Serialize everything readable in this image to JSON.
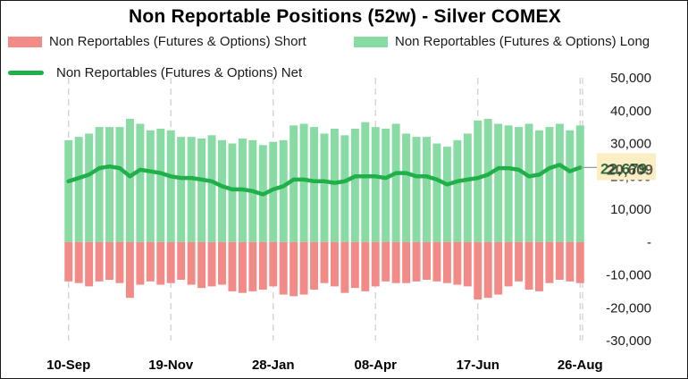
{
  "chart_data": {
    "type": "bar",
    "title": "Non Reportable  Positions (52w) - Silver COMEX",
    "legend": {
      "placement": "top",
      "short_label": "Non Reportables (Futures & Options)  Short",
      "long_label": "Non Reportables (Futures & Options)  Long",
      "net_label": "Non Reportables (Futures & Options)  Net"
    },
    "x_tick_labels": [
      "10-Sep",
      "19-Nov",
      "28-Jan",
      "08-Apr",
      "17-Jun",
      "26-Aug"
    ],
    "x_tick_indices": [
      0,
      10,
      20,
      30,
      40,
      50
    ],
    "y_ticks": [
      50000,
      40000,
      30000,
      20000,
      10000,
      0,
      -10000,
      -20000,
      -30000
    ],
    "y_tick_labels": [
      "50,000",
      "40,000",
      "30,000",
      "20,000",
      "10,000",
      "-",
      "-10,000",
      "-20,000",
      "-30,000"
    ],
    "ylim": [
      -30000,
      50000
    ],
    "grid": "vertical dashed",
    "series": [
      {
        "name": "Non Reportables (Futures & Options)  Long",
        "type": "bar",
        "color": "#88dba3",
        "values": [
          31000,
          32000,
          33000,
          35000,
          35000,
          35000,
          37500,
          36000,
          34000,
          34500,
          34000,
          32000,
          32000,
          31500,
          32500,
          31000,
          30000,
          31500,
          31000,
          29500,
          30500,
          31000,
          35500,
          36000,
          35000,
          33000,
          34500,
          32500,
          34500,
          36500,
          35000,
          34500,
          36000,
          33000,
          32000,
          32000,
          30000,
          29000,
          31000,
          33000,
          37000,
          37500,
          36000,
          35500,
          35000,
          36000,
          34000,
          35000,
          36000,
          34000,
          35500
        ]
      },
      {
        "name": "Non Reportables (Futures & Options)  Short",
        "type": "bar",
        "color": "#f28b88",
        "values": [
          -12000,
          -12500,
          -13500,
          -12000,
          -11500,
          -12500,
          -17000,
          -13000,
          -12000,
          -13000,
          -12500,
          -11500,
          -13000,
          -14000,
          -13500,
          -13000,
          -15000,
          -15500,
          -15000,
          -14500,
          -13500,
          -16000,
          -16500,
          -16000,
          -14500,
          -12500,
          -13500,
          -15500,
          -14000,
          -15000,
          -13500,
          -12000,
          -12500,
          -12500,
          -12000,
          -11500,
          -12000,
          -12500,
          -13000,
          -13500,
          -17500,
          -17000,
          -16000,
          -13500,
          -12000,
          -14500,
          -15000,
          -12500,
          -11500,
          -12000,
          -12500
        ]
      },
      {
        "name": "Non Reportables (Futures & Options)  Net",
        "type": "line",
        "color": "#1fb04a",
        "values": [
          18500,
          19500,
          20500,
          22500,
          23000,
          22500,
          20000,
          22000,
          21500,
          21000,
          20000,
          19500,
          19500,
          19000,
          18500,
          17000,
          16000,
          16000,
          15500,
          14500,
          16000,
          17000,
          19000,
          19000,
          18500,
          18500,
          18000,
          18500,
          20000,
          20000,
          20000,
          19500,
          21000,
          21000,
          20000,
          20000,
          19000,
          17500,
          18500,
          19000,
          19500,
          20500,
          22500,
          22500,
          22000,
          20000,
          20500,
          22500,
          23500,
          21500,
          22679
        ]
      }
    ],
    "last_value_labels": [
      "22,679",
      "20,609"
    ]
  }
}
